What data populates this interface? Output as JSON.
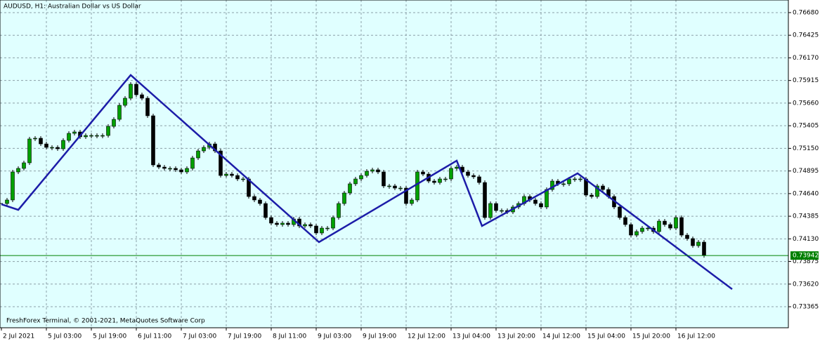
{
  "chart_data": {
    "type": "candlestick",
    "title": "AUDUSD, H1:  Australian Dollar vs US Dollar",
    "footer": "FreshForex Terminal, © 2001-2021, MetaQuotes Software Corp",
    "background": "#e0ffff",
    "grid": true,
    "xlim": [
      -0.5,
      280
    ],
    "ylim": [
      0.73128,
      0.76822
    ],
    "xticks": [
      {
        "value": 0,
        "label": "2 Jul 2021"
      },
      {
        "value": 16,
        "label": "5 Jul 03:00"
      },
      {
        "value": 32,
        "label": "5 Jul 19:00"
      },
      {
        "value": 48,
        "label": "6 Jul 11:00"
      },
      {
        "value": 64,
        "label": "7 Jul 03:00"
      },
      {
        "value": 80,
        "label": "7 Jul 19:00"
      },
      {
        "value": 96,
        "label": "8 Jul 11:00"
      },
      {
        "value": 112,
        "label": "9 Jul 03:00"
      },
      {
        "value": 128,
        "label": "9 Jul 19:00"
      },
      {
        "value": 144,
        "label": "12 Jul 12:00"
      },
      {
        "value": 160,
        "label": "13 Jul 04:00"
      },
      {
        "value": 176,
        "label": "13 Jul 20:00"
      },
      {
        "value": 192,
        "label": "14 Jul 12:00"
      },
      {
        "value": 208,
        "label": "15 Jul 04:00"
      },
      {
        "value": 224,
        "label": "15 Jul 20:00"
      },
      {
        "value": 240,
        "label": "16 Jul 12:00"
      }
    ],
    "yticks": [
      {
        "value": 0.7668,
        "label": "0.76680"
      },
      0.76425,
      {
        "value": 0.7617,
        "label": "0.76170"
      },
      0.75915,
      {
        "value": 0.7566,
        "label": "0.75660"
      },
      0.75405,
      {
        "value": 0.7515,
        "label": "0.75150"
      },
      0.74895,
      {
        "value": 0.7464,
        "label": "0.74640"
      },
      0.74385,
      {
        "value": 0.7413,
        "label": "0.74130"
      },
      0.73875,
      {
        "value": 0.7362,
        "label": "0.73620"
      },
      0.73365
    ],
    "last_price": 0.73942,
    "up_color": "#00a000",
    "down_color": "#000000",
    "x": [
      0,
      2,
      4,
      6,
      8,
      10,
      12,
      14,
      16,
      18,
      20,
      22,
      24,
      26,
      28,
      30,
      32,
      34,
      36,
      38,
      40,
      42,
      44,
      46,
      48,
      50,
      52,
      54,
      56,
      58,
      60,
      62,
      64,
      66,
      68,
      70,
      72,
      74,
      76,
      78,
      80,
      82,
      84,
      86,
      88,
      90,
      92,
      94,
      96,
      98,
      100,
      102,
      104,
      106,
      108,
      110,
      112,
      114,
      116,
      118,
      120,
      122,
      124,
      126,
      128,
      130,
      132,
      134,
      136,
      138,
      140,
      142,
      144,
      146,
      148,
      150,
      152,
      154,
      156,
      158,
      160,
      162,
      164,
      166,
      168,
      170,
      172,
      174,
      176,
      178,
      180,
      182,
      184,
      186,
      188,
      190,
      192,
      194,
      196,
      198,
      200,
      202,
      204,
      206,
      208,
      210,
      212,
      214,
      216,
      218,
      220,
      222,
      224,
      226,
      228,
      230,
      232,
      234,
      236,
      238,
      240,
      242,
      244,
      246,
      248,
      250
    ],
    "close": [
      0.74528,
      0.74568,
      0.74884,
      0.74924,
      0.74987,
      0.75256,
      0.75264,
      0.752,
      0.75161,
      0.75161,
      0.75145,
      0.7524,
      0.75319,
      0.75335,
      0.7528,
      0.75295,
      0.75295,
      0.75295,
      0.75295,
      0.75398,
      0.75477,
      0.75635,
      0.75715,
      0.75873,
      0.75754,
      0.75715,
      0.75517,
      0.74963,
      0.74939,
      0.74924,
      0.74924,
      0.74908,
      0.74884,
      0.74924,
      0.75042,
      0.75121,
      0.75161,
      0.752,
      0.75121,
      0.74844,
      0.7486,
      0.74844,
      0.74805,
      0.74805,
      0.74607,
      0.74568,
      0.74528,
      0.7437,
      0.74307,
      0.74291,
      0.74307,
      0.74291,
      0.74354,
      0.74275,
      0.74291,
      0.74275,
      0.74196,
      0.74251,
      0.74251,
      0.7437,
      0.74528,
      0.74647,
      0.7475,
      0.74805,
      0.74844,
      0.74892,
      0.74908,
      0.74884,
      0.74726,
      0.74726,
      0.74702,
      0.74702,
      0.74528,
      0.74568,
      0.74884,
      0.7486,
      0.74781,
      0.74765,
      0.74805,
      0.74805,
      0.74924,
      0.74939,
      0.74884,
      0.74844,
      0.74829,
      0.74765,
      0.7437,
      0.74528,
      0.74449,
      0.74449,
      0.74433,
      0.74489,
      0.74528,
      0.74607,
      0.74568,
      0.74528,
      0.74489,
      0.74686,
      0.74781,
      0.7475,
      0.7475,
      0.74805,
      0.74805,
      0.74805,
      0.74623,
      0.74607,
      0.74726,
      0.74686,
      0.74607,
      0.74489,
      0.7437,
      0.74291,
      0.74172,
      0.74212,
      0.74251,
      0.74251,
      0.74212,
      0.7433,
      0.74291,
      0.74251,
      0.7437,
      0.74172,
      0.74133,
      0.74053,
      0.74093,
      0.73942
    ],
    "zigzag": {
      "color": "#1c1ca8",
      "x": [
        0,
        6,
        46,
        113,
        162,
        171,
        205,
        260
      ],
      "values": [
        0.7452,
        0.74457,
        0.75976,
        0.74093,
        0.75011,
        0.74275,
        0.74868,
        0.73563
      ]
    }
  }
}
